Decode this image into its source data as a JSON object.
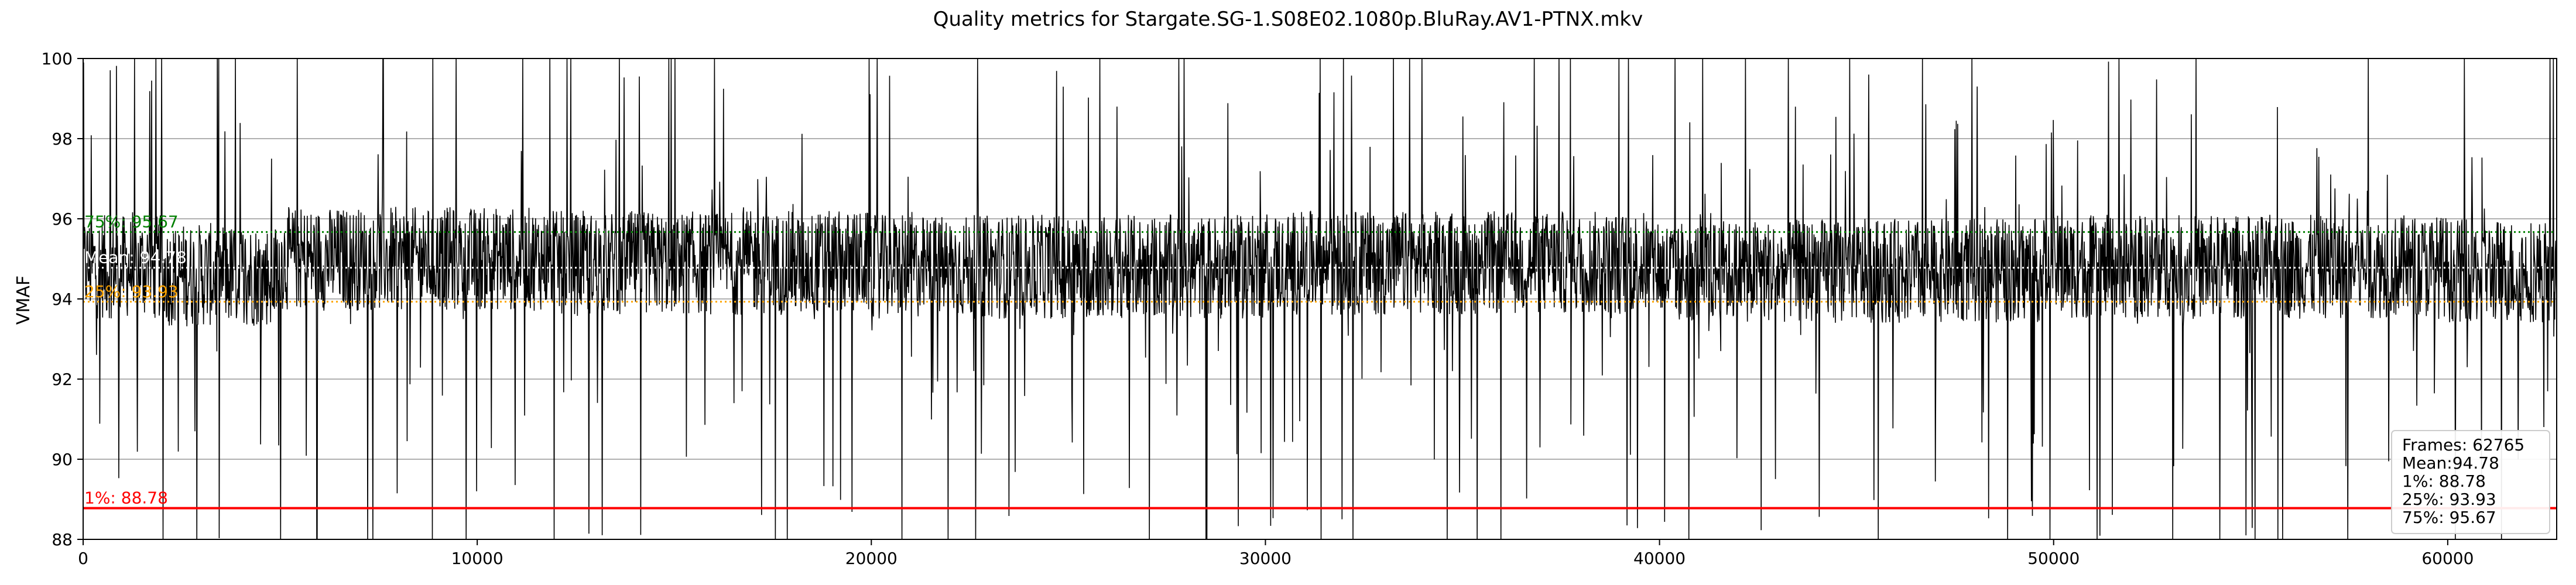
{
  "chart_data": {
    "type": "line",
    "title": "Quality metrics for Stargate.SG-1.S08E02.1080p.BluRay.AV1-PTNX.mkv",
    "xlabel": "",
    "ylabel": "VMAF",
    "xlim": [
      0,
      62765
    ],
    "ylim": [
      88,
      100
    ],
    "x_ticks": [
      0,
      10000,
      20000,
      30000,
      40000,
      50000,
      60000
    ],
    "y_ticks": [
      88,
      90,
      92,
      94,
      96,
      98,
      100
    ],
    "grid": true,
    "series": [
      {
        "color": "#000000",
        "frames": 62765,
        "typical_range": [
          93.0,
          96.5
        ],
        "segments": [
          {
            "x": [
              0,
              2000
            ],
            "center": 94.8
          },
          {
            "x": [
              2000,
              5000
            ],
            "center": 94.6
          },
          {
            "x": [
              5000,
              12000
            ],
            "center": 95.0
          },
          {
            "x": [
              12000,
              20000
            ],
            "center": 94.9
          },
          {
            "x": [
              20000,
              30000
            ],
            "center": 94.8
          },
          {
            "x": [
              30000,
              40000
            ],
            "center": 94.9
          },
          {
            "x": [
              40000,
              50000
            ],
            "center": 94.7
          },
          {
            "x": [
              50000,
              60000
            ],
            "center": 94.8
          },
          {
            "x": [
              60000,
              62765
            ],
            "center": 94.7
          }
        ]
      }
    ],
    "reference_lines": [
      {
        "label": "75%: 95.67",
        "value": 95.67,
        "color": "#008000",
        "style": "dotted"
      },
      {
        "label": "Mean: 94.78",
        "value": 94.78,
        "color": "#ffffff",
        "style": "dotted"
      },
      {
        "label": "25%: 93.93",
        "value": 93.93,
        "color": "#ffa500",
        "style": "dotted"
      },
      {
        "label": "1%: 88.78",
        "value": 88.78,
        "color": "#ff0000",
        "style": "solid"
      }
    ],
    "legend": {
      "placement": "bottom-right",
      "lines": [
        "Frames: 62765",
        "Mean:94.78",
        "1%: 88.78",
        "25%: 93.93",
        "75%: 95.67"
      ]
    }
  }
}
